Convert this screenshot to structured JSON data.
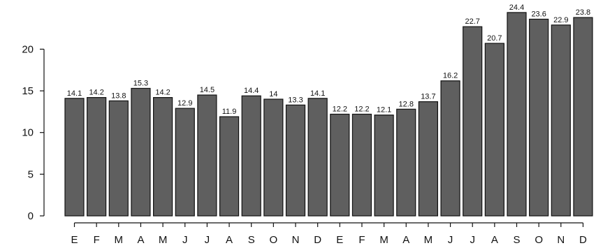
{
  "chart_data": {
    "type": "bar",
    "title": "",
    "xlabel": "",
    "ylabel": "",
    "categories": [
      "E",
      "F",
      "M",
      "A",
      "M",
      "J",
      "J",
      "A",
      "S",
      "O",
      "N",
      "D",
      "E",
      "F",
      "M",
      "A",
      "M",
      "J",
      "J",
      "A",
      "S",
      "O",
      "N",
      "D"
    ],
    "values": [
      14.1,
      14.2,
      13.8,
      15.3,
      14.2,
      12.9,
      14.5,
      11.9,
      14.4,
      14,
      13.3,
      14.1,
      12.2,
      12.2,
      12.1,
      12.8,
      13.7,
      16.2,
      22.7,
      20.7,
      24.4,
      23.6,
      22.9,
      23.8
    ],
    "value_labels": [
      "14.1",
      "14.2",
      "13.8",
      "15.3",
      "14.2",
      "12.9",
      "14.5",
      "11.9",
      "14.4",
      "14",
      "13.3",
      "14.1",
      "12.2",
      "12.2",
      "12.1",
      "12.8",
      "13.7",
      "16.2",
      "22.7",
      "20.7",
      "24.4",
      "23.6",
      "22.9",
      "23.8"
    ],
    "yticks": [
      0,
      5,
      10,
      15,
      20
    ],
    "ylim": [
      0,
      24.4
    ],
    "grid": false,
    "bar_color": "#5f5f5f",
    "bar_edge_color": "#111111"
  }
}
